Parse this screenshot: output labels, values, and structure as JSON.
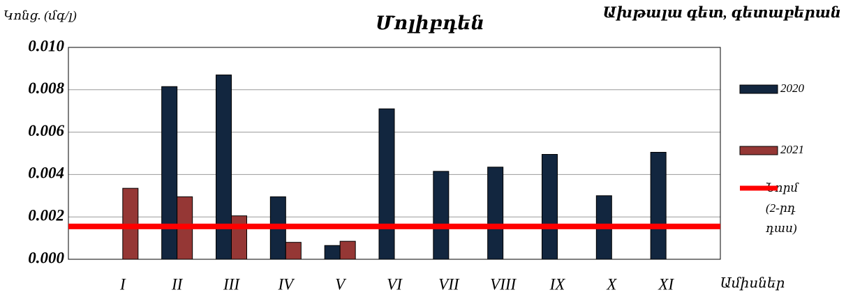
{
  "chart_data": {
    "type": "bar",
    "title": "Մոլիբդեն",
    "subtitle": "Ախթալա գետ, գետաբերան",
    "y_label": "Կոնց. (մգ/լ)",
    "x_label": "Ամիսներ",
    "categories": [
      "I",
      "II",
      "III",
      "IV",
      "V",
      "VI",
      "VII",
      "VIII",
      "IX",
      "X",
      "XI"
    ],
    "series": [
      {
        "name": "2020",
        "color": "#12263f",
        "values": [
          null,
          0.00815,
          0.0087,
          0.00295,
          0.00065,
          0.0071,
          0.00415,
          0.00435,
          0.00495,
          0.003,
          0.00505
        ]
      },
      {
        "name": "2021",
        "color": "#953735",
        "values": [
          0.00335,
          0.00295,
          0.00205,
          0.0008,
          0.00085,
          null,
          null,
          null,
          null,
          null,
          null
        ]
      }
    ],
    "norm": {
      "name": "Նորմ (2-րդ դաս)",
      "color": "#ff0000",
      "value": 0.00155
    },
    "ylim": [
      0,
      0.01
    ],
    "yticks": [
      {
        "value": 0,
        "label": "0.000"
      },
      {
        "value": 0.002,
        "label": "0.002"
      },
      {
        "value": 0.004,
        "label": "0.004"
      },
      {
        "value": 0.006,
        "label": "0.006"
      },
      {
        "value": 0.008,
        "label": "0.008"
      },
      {
        "value": 0.01,
        "label": "0.010"
      }
    ],
    "grid": true,
    "legend": "right"
  }
}
